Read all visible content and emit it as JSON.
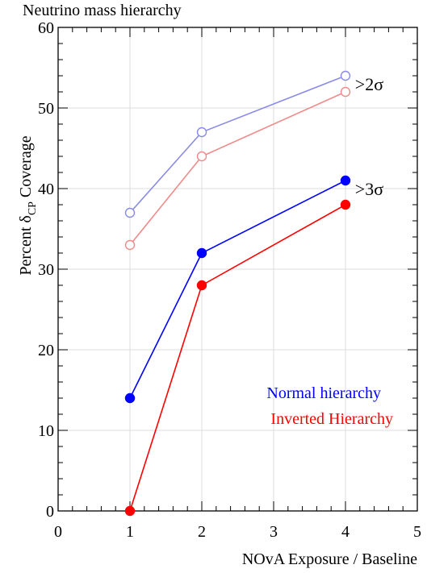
{
  "chart_data": {
    "type": "line",
    "title": "Neutrino mass hierarchy",
    "xlabel": "NOvA Exposure / Baseline",
    "ylabel_parts": {
      "prefix": "Percent δ",
      "sub": "CP",
      "suffix": " Coverage"
    },
    "xlim": [
      0,
      5
    ],
    "ylim": [
      0,
      60
    ],
    "xticks": [
      0,
      1,
      2,
      3,
      4,
      5
    ],
    "yticks": [
      0,
      10,
      20,
      30,
      40,
      50,
      60
    ],
    "grid": true,
    "x": [
      1,
      2,
      4
    ],
    "series": [
      {
        "name": "",
        "group": ">2σ",
        "hierarchy": "normal",
        "color": "#8a8ae8",
        "filled": false,
        "values": [
          37,
          47,
          54
        ]
      },
      {
        "name": "",
        "group": ">2σ",
        "hierarchy": "inverted",
        "color": "#f08a8a",
        "filled": false,
        "values": [
          33,
          44,
          52
        ]
      },
      {
        "name": "",
        "group": ">3σ",
        "hierarchy": "normal",
        "color": "#0000ff",
        "filled": true,
        "values": [
          14,
          32,
          41
        ]
      },
      {
        "name": "",
        "group": ">3σ",
        "hierarchy": "inverted",
        "color": "#ff0000",
        "filled": true,
        "values": [
          0,
          28,
          38
        ]
      }
    ],
    "annotations": [
      {
        "text": ">2σ",
        "x": 4.2,
        "y": 53
      },
      {
        "text": ">3σ",
        "x": 4.2,
        "y": 40
      }
    ],
    "legend": {
      "placement": "bottom-right",
      "entries": [
        {
          "text": "Normal hierarchy",
          "color": "#0000ff"
        },
        {
          "text": "Inverted Hierarchy",
          "color": "#ff0000"
        }
      ]
    }
  }
}
